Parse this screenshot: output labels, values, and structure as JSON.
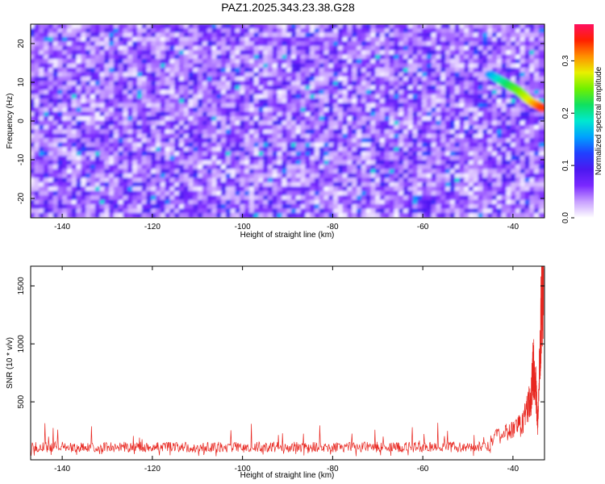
{
  "figure_title": "PAZ1.2025.343.23.38.G28",
  "chart_data": [
    {
      "type": "heatmap",
      "xlabel": "Height of straight line (km)",
      "ylabel": "Frequency (Hz)",
      "xlim": [
        -147,
        -33
      ],
      "ylim": [
        -25,
        25
      ],
      "x_ticks": [
        -140,
        -120,
        -100,
        -80,
        -60,
        -40
      ],
      "y_ticks": [
        -20,
        -10,
        0,
        10,
        20
      ],
      "colorbar": {
        "label": "Normalized spectral amplitude",
        "range": [
          0.0,
          0.37
        ],
        "ticks": [
          0.0,
          0.1,
          0.2,
          0.3
        ],
        "tick_labels": [
          "0.0",
          "0.1",
          "0.2",
          "0.3"
        ],
        "colormap": [
          "#ffffff",
          "#c8a0ff",
          "#7a28ff",
          "#4b18f0",
          "#2040ff",
          "#00a0ff",
          "#00e8d0",
          "#10e060",
          "#70f000",
          "#e8f000",
          "#ff9000",
          "#ff2000",
          "#ff1060"
        ]
      },
      "features": [
        {
          "name": "noise_background",
          "amplitude_range": [
            0.0,
            0.12
          ]
        },
        {
          "name": "strong_ridge",
          "x": [
            -45,
            -42,
            -39,
            -36,
            -33
          ],
          "y": [
            12,
            10,
            8,
            5,
            3
          ],
          "amplitude": [
            0.15,
            0.2,
            0.24,
            0.28,
            0.34
          ]
        }
      ],
      "grid": false
    },
    {
      "type": "line",
      "xlabel": "Height of straight line (km)",
      "ylabel": "SNR (10 * v/v)",
      "xlim": [
        -147,
        -33
      ],
      "ylim": [
        0,
        1670
      ],
      "x_ticks": [
        -140,
        -120,
        -100,
        -80,
        -60,
        -40
      ],
      "y_ticks": [
        500,
        1000,
        1500
      ],
      "series": [
        {
          "color": "#e8261f",
          "baseline": {
            "x_start": -147,
            "x_end": -45,
            "mean": 110,
            "spread": 45,
            "spike_max": 320
          },
          "points": [
            {
              "x": -45,
              "y": 180
            },
            {
              "x": -42,
              "y": 220
            },
            {
              "x": -40,
              "y": 260
            },
            {
              "x": -38,
              "y": 300
            },
            {
              "x": -37,
              "y": 450
            },
            {
              "x": -36,
              "y": 500
            },
            {
              "x": -35.5,
              "y": 820
            },
            {
              "x": -35,
              "y": 700
            },
            {
              "x": -34.5,
              "y": 280
            },
            {
              "x": -34,
              "y": 1000
            },
            {
              "x": -33.6,
              "y": 1400
            },
            {
              "x": -33.2,
              "y": 1650
            }
          ]
        }
      ],
      "grid": false
    }
  ]
}
